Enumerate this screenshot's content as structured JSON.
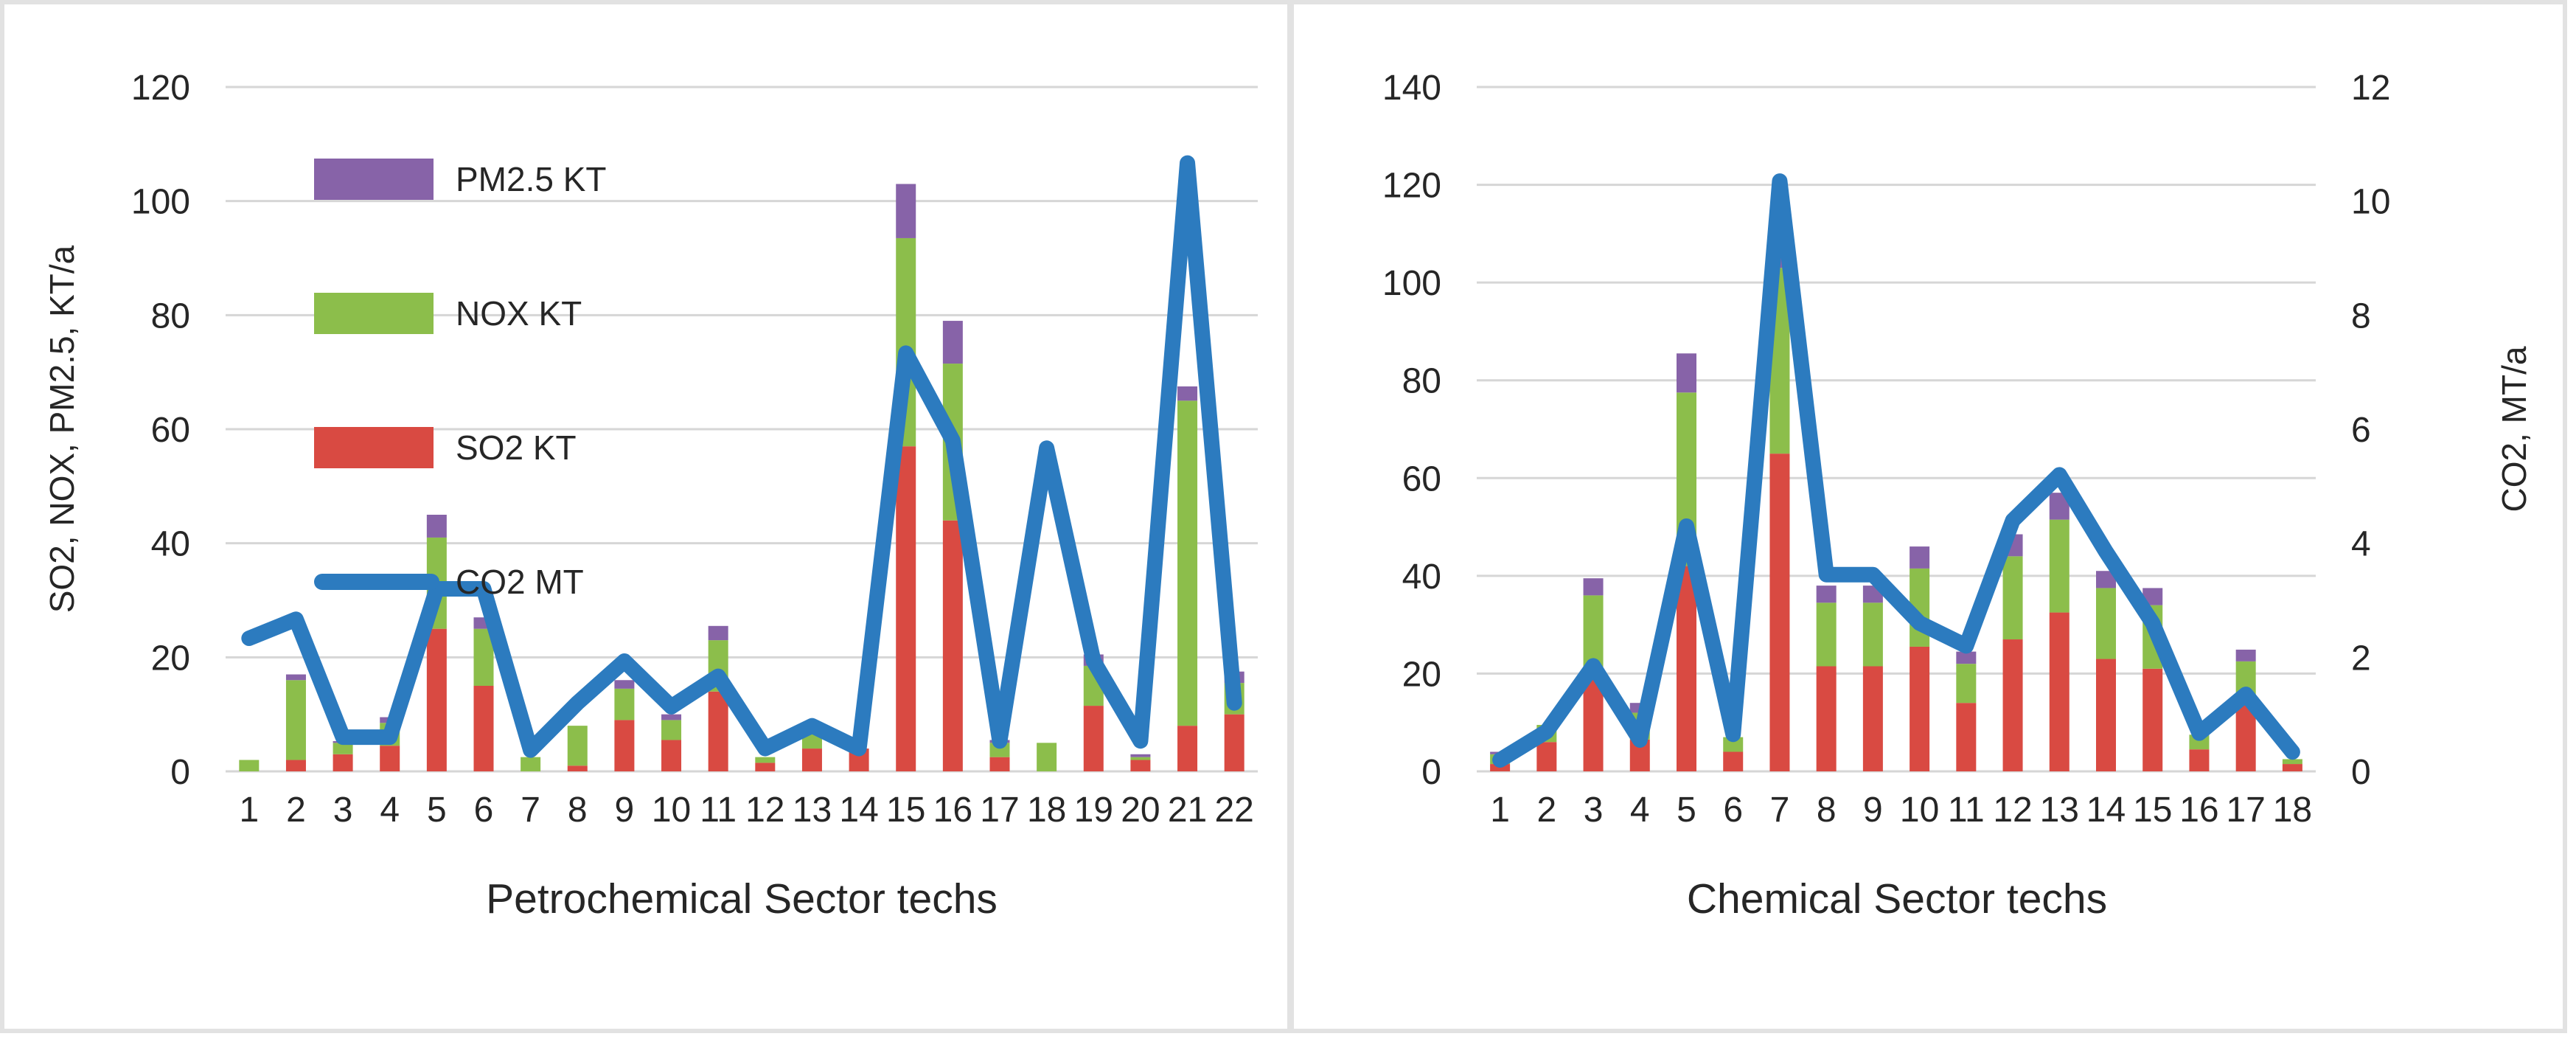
{
  "figure": {
    "background": "#ffffff",
    "frame_color": "#e2e2e2",
    "grid_color": "#d6d6d6",
    "text_color": "#262626"
  },
  "legend": {
    "position": "top-left-inside-left-panel",
    "items": [
      {
        "label": "PM2.5 KT",
        "color": "#8763a8",
        "shape": "box"
      },
      {
        "label": "NOX KT",
        "color": "#8cbe4b",
        "shape": "box"
      },
      {
        "label": "SO2 KT",
        "color": "#d94a42",
        "shape": "box"
      },
      {
        "label": "CO2 MT",
        "color": "#2c7bbf",
        "shape": "line"
      }
    ]
  },
  "chart_data": [
    {
      "type": "bar",
      "subtype": "stacked-bars-with-secondary-axis-line",
      "xlabel": "Petrochemical Sector techs",
      "ylabel": "SO2, NOX, PM2.5, KT/a",
      "y2label": "",
      "categories": [
        "1",
        "2",
        "3",
        "4",
        "5",
        "6",
        "7",
        "8",
        "9",
        "10",
        "11",
        "12",
        "13",
        "14",
        "15",
        "16",
        "17",
        "18",
        "19",
        "20",
        "21",
        "22"
      ],
      "ylim": [
        0,
        120
      ],
      "y2lim": [
        0,
        9
      ],
      "left_ticks": [
        0,
        20,
        40,
        60,
        80,
        100,
        120
      ],
      "right_ticks": [
        0,
        1,
        2,
        3,
        4,
        5,
        6,
        7,
        8,
        9
      ],
      "grid": true,
      "series": [
        {
          "name": "SO2 KT",
          "type": "bar",
          "axis": "left",
          "color": "#d94a42",
          "values": [
            0,
            2,
            3,
            4.5,
            25,
            15,
            0,
            1,
            9,
            5.5,
            14,
            1.5,
            4,
            4,
            57,
            44,
            2.5,
            0,
            11.5,
            2,
            8,
            10
          ]
        },
        {
          "name": "NOX KT",
          "type": "bar",
          "axis": "left",
          "color": "#8cbe4b",
          "values": [
            2,
            14,
            2,
            4,
            16,
            10,
            2.5,
            7,
            5.5,
            3.5,
            9,
            1,
            3,
            0,
            36.5,
            27.5,
            2.5,
            5,
            7,
            0.5,
            57,
            5.5
          ]
        },
        {
          "name": "PM2.5 KT",
          "type": "bar",
          "axis": "left",
          "color": "#8763a8",
          "values": [
            0,
            1,
            0.3,
            1,
            4,
            2,
            0,
            0,
            1.5,
            1,
            2.5,
            0,
            0.5,
            0,
            9.5,
            7.5,
            0.5,
            0,
            2,
            0.5,
            2.5,
            2
          ]
        },
        {
          "name": "CO2 MT",
          "type": "line",
          "axis": "right",
          "color": "#2c7bbf",
          "values": [
            1.75,
            2.0,
            0.45,
            0.45,
            2.4,
            2.4,
            0.28,
            0.9,
            1.45,
            0.85,
            1.25,
            0.3,
            0.6,
            0.3,
            5.5,
            4.35,
            0.4,
            4.25,
            1.45,
            0.4,
            8.0,
            0.9
          ]
        }
      ]
    },
    {
      "type": "bar",
      "subtype": "stacked-bars-with-secondary-axis-line",
      "xlabel": "Chemical Sector techs",
      "ylabel": "",
      "y2label": "CO2, MT/a",
      "categories": [
        "1",
        "2",
        "3",
        "4",
        "5",
        "6",
        "7",
        "8",
        "9",
        "10",
        "11",
        "12",
        "13",
        "14",
        "15",
        "16",
        "17",
        "18"
      ],
      "ylim": [
        0,
        140
      ],
      "y2lim": [
        0,
        12
      ],
      "left_ticks": [
        0,
        20,
        40,
        60,
        80,
        100,
        120,
        140
      ],
      "right_ticks": [
        0,
        2,
        4,
        6,
        8,
        10,
        12
      ],
      "grid": true,
      "series": [
        {
          "name": "SO2 KT",
          "type": "bar",
          "axis": "left",
          "color": "#d94a42",
          "values": [
            1.5,
            6,
            19.5,
            6.5,
            42,
            4,
            65,
            21.5,
            21.5,
            25.5,
            14,
            27,
            32.5,
            23,
            21,
            4.5,
            14.5,
            1.5
          ]
        },
        {
          "name": "NOX KT",
          "type": "bar",
          "axis": "left",
          "color": "#8cbe4b",
          "values": [
            2,
            3.5,
            16.5,
            5.5,
            35.5,
            3,
            38,
            13,
            13,
            16,
            8,
            17,
            19,
            14.5,
            13,
            3,
            8,
            1
          ]
        },
        {
          "name": "PM2.5 KT",
          "type": "bar",
          "axis": "left",
          "color": "#8763a8",
          "values": [
            0.5,
            0,
            3.5,
            2,
            8,
            0,
            2,
            3.5,
            3.5,
            4.5,
            2.5,
            4.5,
            5.5,
            3.5,
            3.5,
            0,
            2.4,
            0
          ]
        },
        {
          "name": "CO2 MT",
          "type": "line",
          "axis": "right",
          "color": "#2c7bbf",
          "values": [
            0.2,
            0.7,
            1.85,
            0.55,
            4.3,
            0.65,
            10.35,
            3.45,
            3.45,
            2.6,
            2.2,
            4.4,
            5.2,
            3.85,
            2.6,
            0.67,
            1.35,
            0.34
          ]
        }
      ]
    }
  ]
}
